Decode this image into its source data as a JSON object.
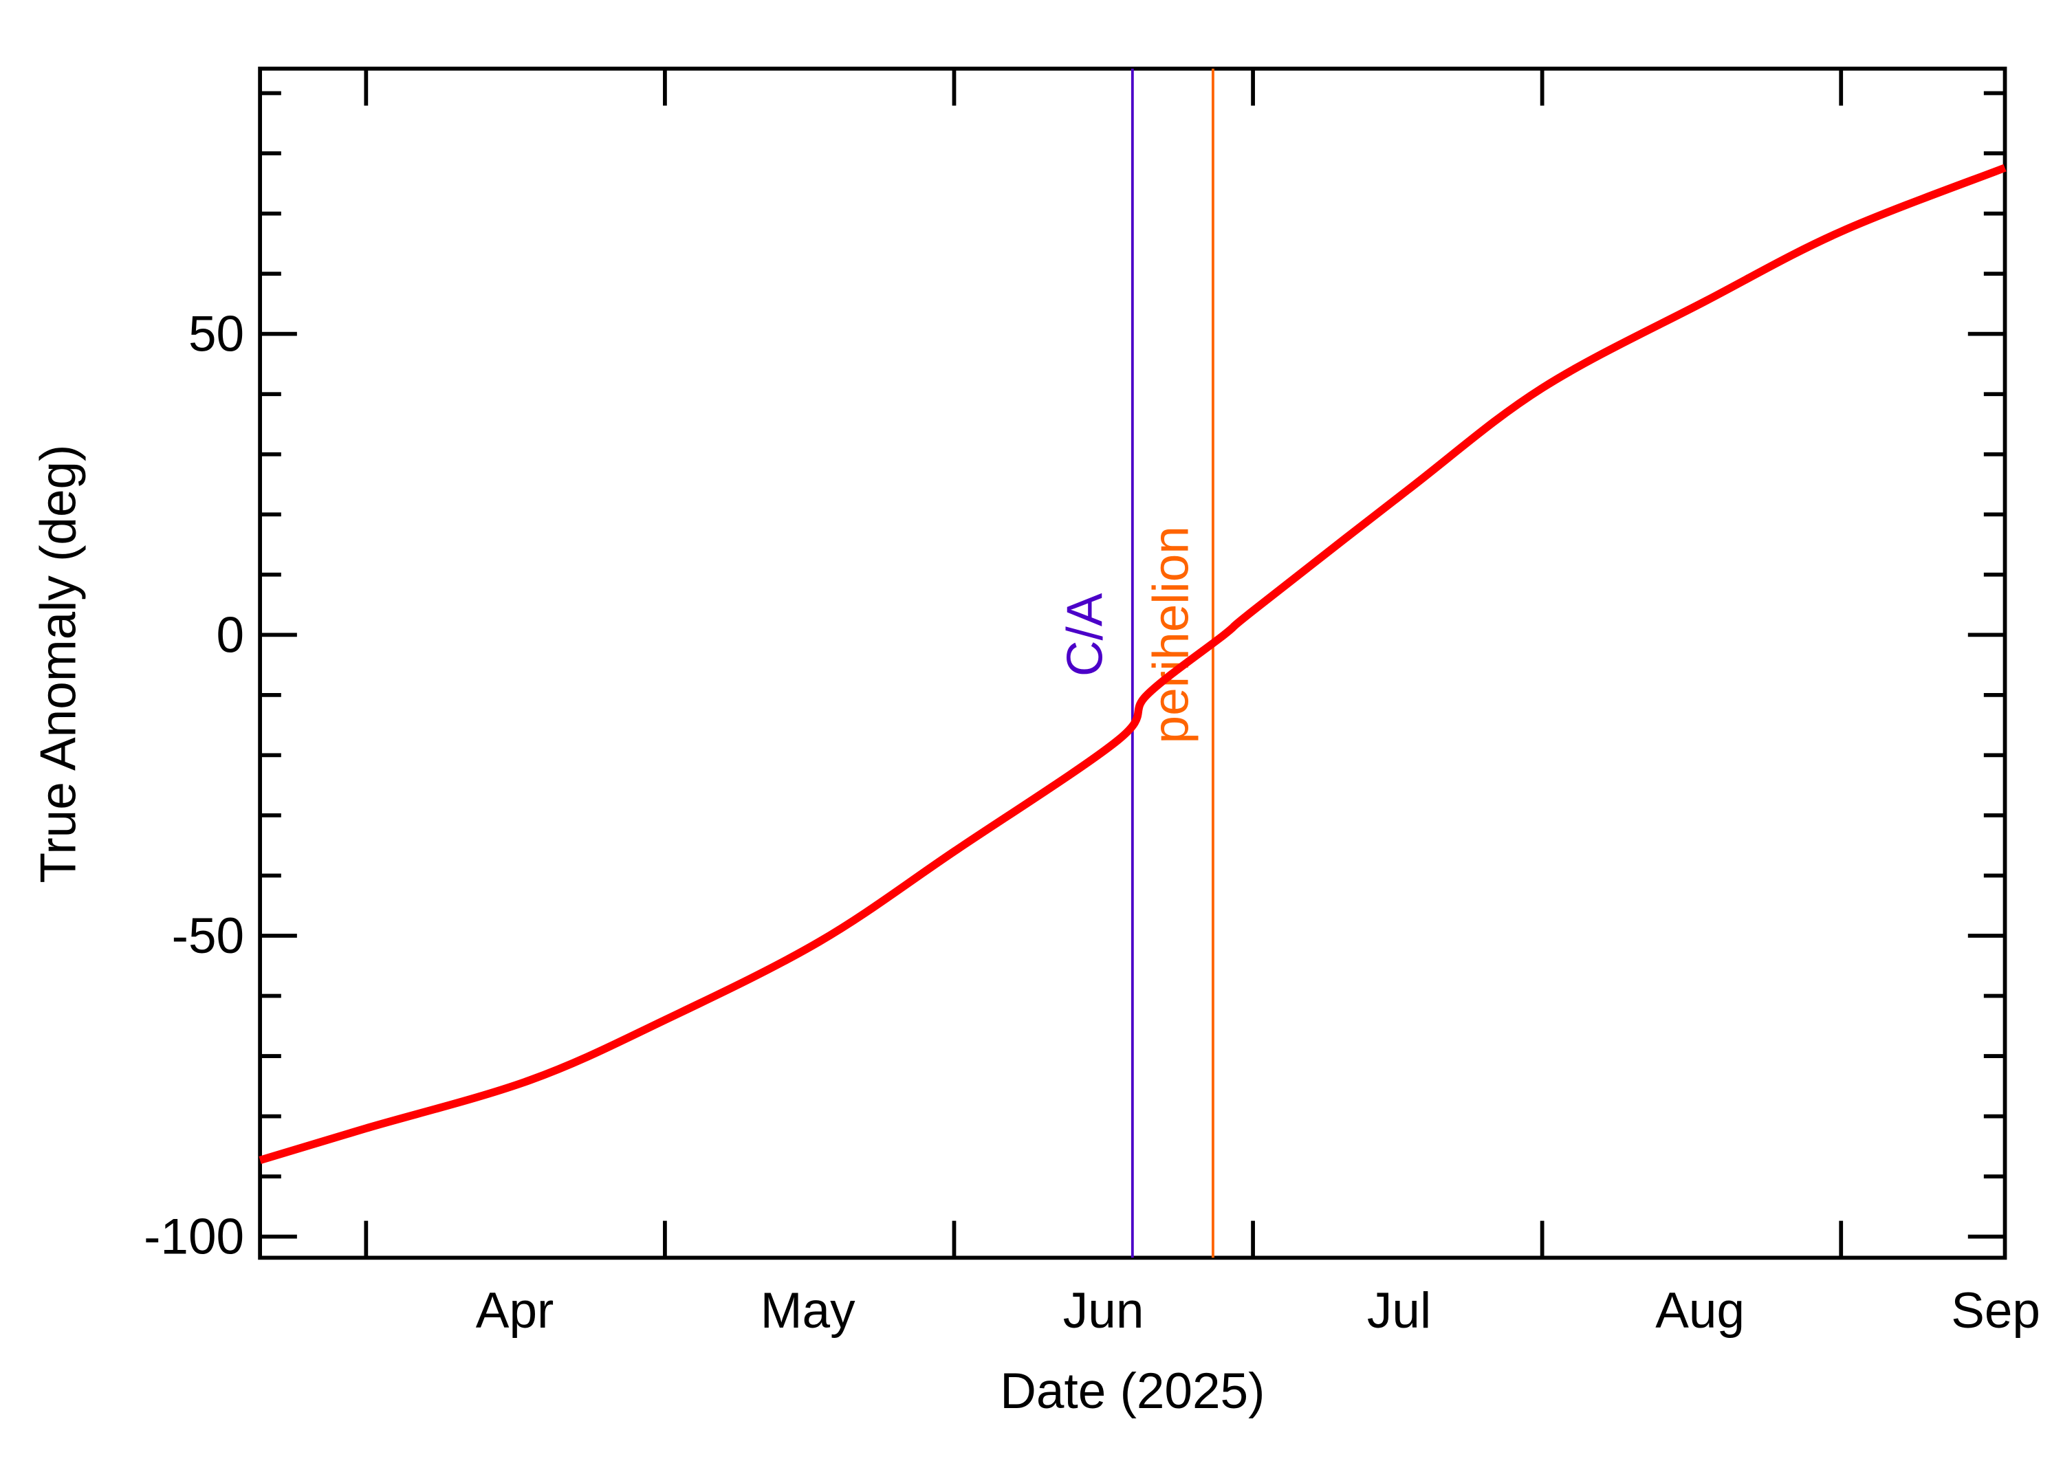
{
  "chart_data": {
    "type": "line",
    "title": "",
    "xlabel": "Date (2025)",
    "ylabel": "True Anomaly (deg)",
    "ylim": [
      -103.5,
      94
    ],
    "xlim": [
      "2025-03-04",
      "2025-09-01"
    ],
    "grid": false,
    "legend": null,
    "y_ticks": [
      {
        "value": 50,
        "label": "50"
      },
      {
        "value": 0,
        "label": "0"
      },
      {
        "value": -50,
        "label": "-50"
      },
      {
        "value": -100,
        "label": "-100"
      }
    ],
    "y_minor_step": 10,
    "x_tick_labels": [
      {
        "date": "2025-04-01",
        "label": "Apr"
      },
      {
        "date": "2025-05-01",
        "label": "May"
      },
      {
        "date": "2025-06-01",
        "label": "Jun"
      },
      {
        "date": "2025-07-01",
        "label": "Jul"
      },
      {
        "date": "2025-08-01",
        "label": "Aug"
      },
      {
        "date": "2025-09-01",
        "label": "Sep"
      }
    ],
    "x_major_ticks": [
      "2025-03-15",
      "2025-04-15",
      "2025-05-15",
      "2025-06-15",
      "2025-07-15",
      "2025-08-15"
    ],
    "series": [
      {
        "name": "True Anomaly",
        "color": "#ff0000",
        "x": [
          "2025-03-04",
          "2025-03-15",
          "2025-04-01",
          "2025-04-15",
          "2025-05-01",
          "2025-05-15",
          "2025-06-01",
          "2025-06-04",
          "2025-06-12",
          "2025-06-15",
          "2025-07-01",
          "2025-07-15",
          "2025-08-01",
          "2025-08-15",
          "2025-09-01"
        ],
        "values": [
          -87.3,
          -82,
          -74,
          -64,
          -51,
          -36,
          -17.5,
          -10,
          0,
          4,
          24,
          41,
          55.5,
          67,
          77.6
        ]
      }
    ],
    "annotations": [
      {
        "label": "C/A",
        "date": "2025-06-04",
        "type": "vertical-line",
        "color": "#4b00c8"
      },
      {
        "label": "perihelion",
        "date": "2025-06-12",
        "type": "vertical-line",
        "color": "#ff6400"
      }
    ]
  },
  "axes": {
    "xlabel": "Date (2025)",
    "ylabel": "True Anomaly (deg)",
    "y_labels": [
      "50",
      "0",
      "-50",
      "-100"
    ],
    "x_labels": [
      "Apr",
      "May",
      "Jun",
      "Jul",
      "Aug",
      "Sep"
    ]
  },
  "markers": {
    "ca": {
      "label": "C/A",
      "color": "#4b00c8"
    },
    "perihelion": {
      "label": "perihelion",
      "color": "#ff6400"
    }
  },
  "colors": {
    "curve": "#ff0000",
    "axes": "#000000",
    "background": "#ffffff"
  }
}
